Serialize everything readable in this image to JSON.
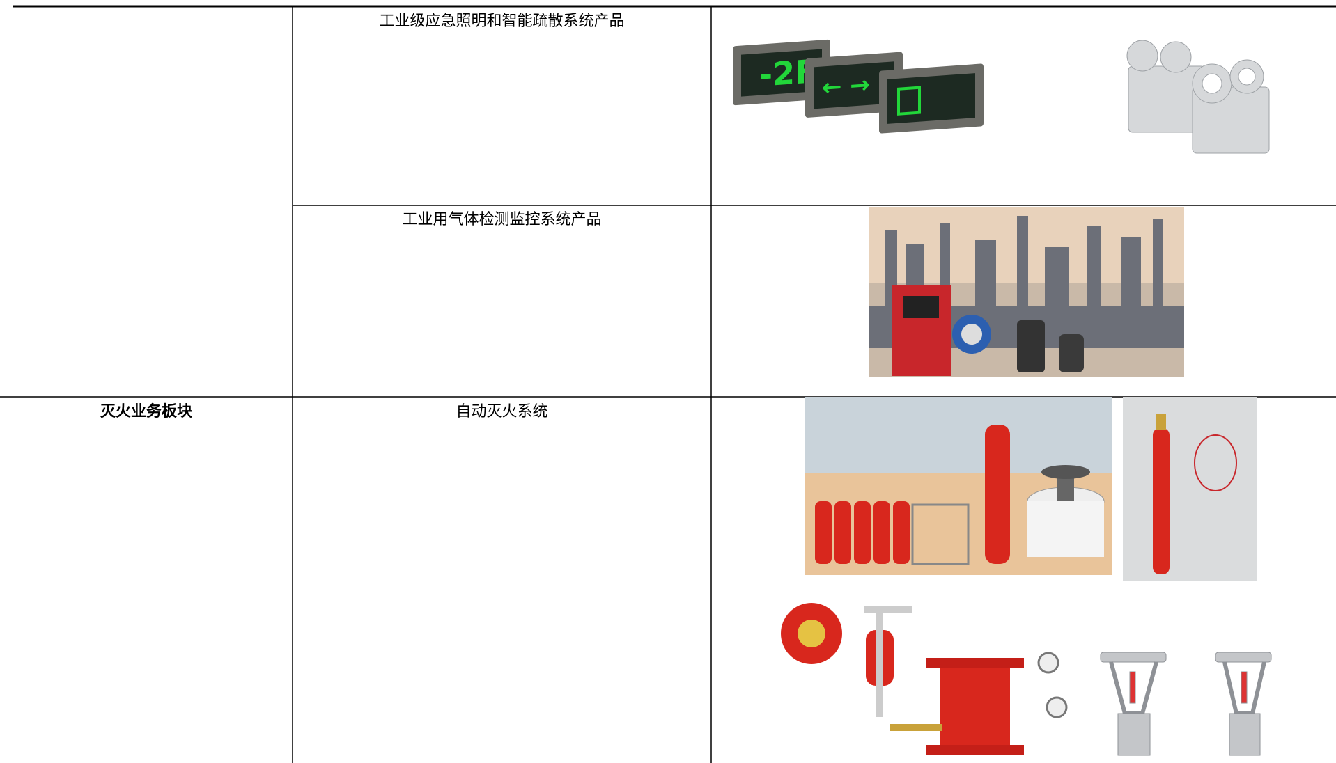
{
  "table": {
    "rows": [
      {
        "product": "工业级应急照明和智能疏散系统产品"
      },
      {
        "product": "工业用气体检测监控系统产品"
      },
      {
        "segment": "灭火业务板块",
        "product": "自动灭火系统"
      }
    ]
  }
}
